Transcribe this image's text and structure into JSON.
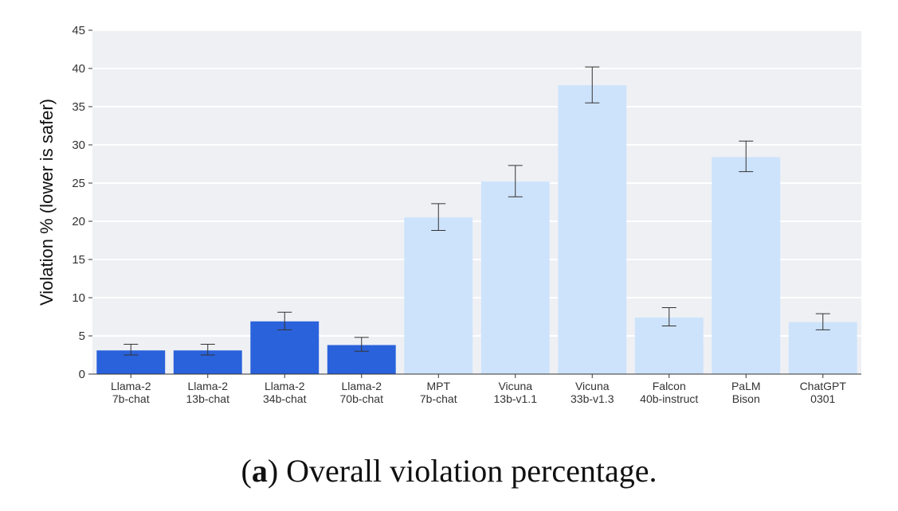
{
  "chart_data": {
    "type": "bar",
    "ylabel": "Violation % (lower is safer)",
    "xlabel": "",
    "ylim": [
      0,
      45
    ],
    "yticks": [
      0,
      5,
      10,
      15,
      20,
      25,
      30,
      35,
      40,
      45
    ],
    "grid": true,
    "categories": [
      [
        "Llama-2",
        "7b-chat"
      ],
      [
        "Llama-2",
        "13b-chat"
      ],
      [
        "Llama-2",
        "34b-chat"
      ],
      [
        "Llama-2",
        "70b-chat"
      ],
      [
        "MPT",
        "7b-chat"
      ],
      [
        "Vicuna",
        "13b-v1.1"
      ],
      [
        "Vicuna",
        "33b-v1.3"
      ],
      [
        "Falcon",
        "40b-instruct"
      ],
      [
        "PaLM",
        "Bison"
      ],
      [
        "ChatGPT",
        "0301"
      ]
    ],
    "values": [
      3.1,
      3.1,
      6.9,
      3.8,
      20.5,
      25.2,
      37.8,
      7.4,
      28.4,
      6.8
    ],
    "error_low": [
      2.5,
      2.5,
      5.8,
      3.0,
      18.8,
      23.2,
      35.5,
      6.3,
      26.5,
      5.8
    ],
    "error_high": [
      3.9,
      3.9,
      8.1,
      4.8,
      22.3,
      27.3,
      40.2,
      8.7,
      30.5,
      7.9
    ],
    "colors": [
      "#2a62db",
      "#2a62db",
      "#2a62db",
      "#2a62db",
      "#cde3fb",
      "#cde3fb",
      "#cde3fb",
      "#cde3fb",
      "#cde3fb",
      "#cde3fb"
    ],
    "background": "#eef0f4",
    "grid_color": "#ffffff"
  },
  "caption": {
    "label": "a",
    "text": "Overall violation percentage."
  }
}
